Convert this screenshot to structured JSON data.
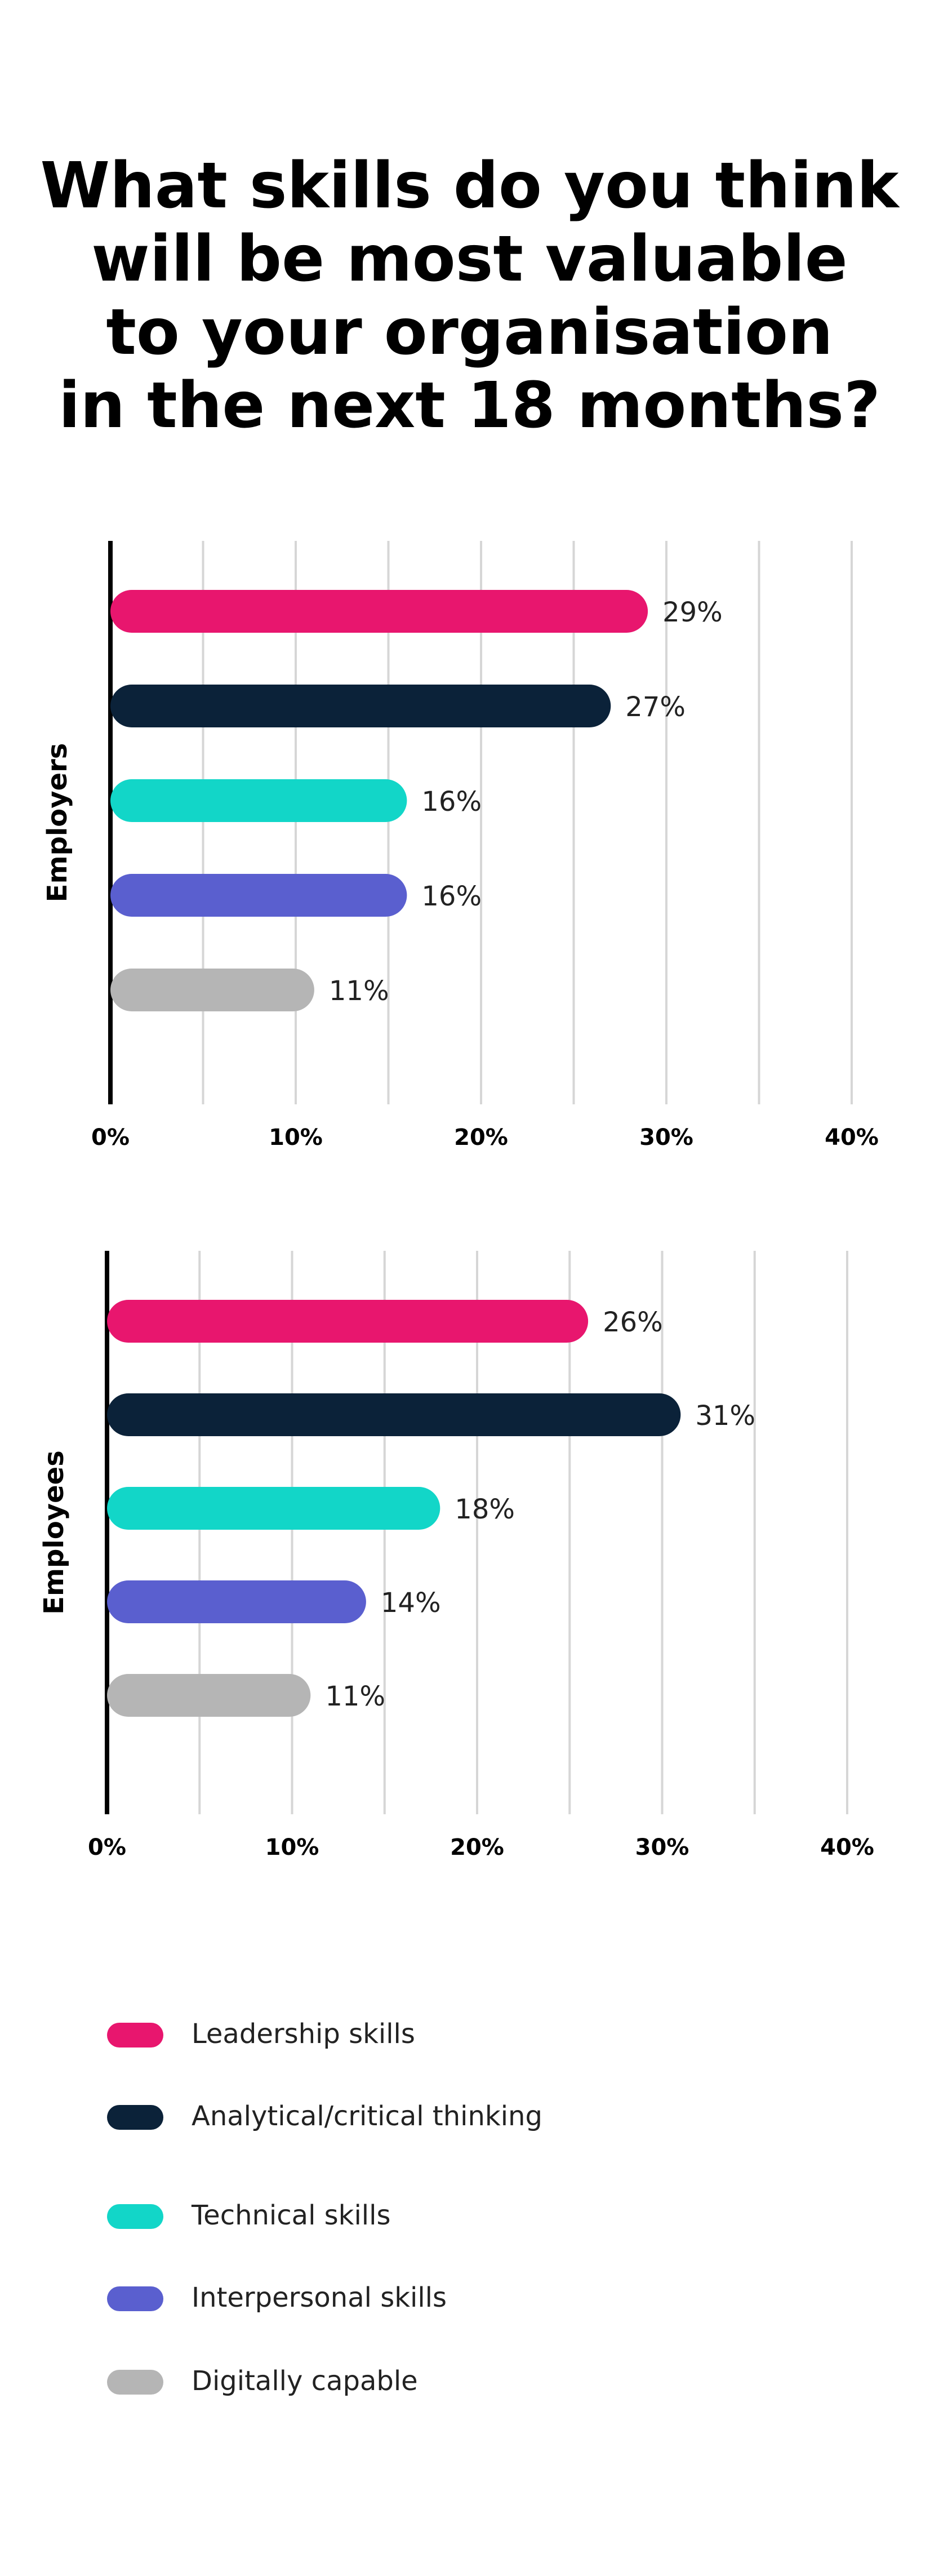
{
  "title_lines": [
    "What skills do you think",
    "will be most valuable",
    "to your organisation",
    "in the next 18 months?"
  ],
  "colors": {
    "leadership": "#E8166E",
    "analytical": "#0B2239",
    "technical": "#12D6C8",
    "interpersonal": "#5A5FCF",
    "digital": "#B5B5B5",
    "grid": "#D6D6D6",
    "axis": "#000000"
  },
  "chart_data": [
    {
      "type": "bar",
      "orientation": "horizontal",
      "ylabel": "Employers",
      "categories": [
        "Leadership skills",
        "Analytical/critical thinking",
        "Technical skills",
        "Interpersonal skills",
        "Digitally capable"
      ],
      "values": [
        29,
        27,
        16,
        16,
        11
      ],
      "value_labels": [
        "29%",
        "27%",
        "16%",
        "16%",
        "11%"
      ],
      "xlim": [
        0,
        40
      ],
      "xticks": [
        0,
        10,
        20,
        30,
        40
      ],
      "xtick_labels": [
        "0%",
        "10%",
        "20%",
        "30%",
        "40%"
      ],
      "grid_minor_step": 5,
      "grid": true
    },
    {
      "type": "bar",
      "orientation": "horizontal",
      "ylabel": "Employees",
      "categories": [
        "Leadership skills",
        "Analytical/critical thinking",
        "Technical skills",
        "Interpersonal skills",
        "Digitally capable"
      ],
      "values": [
        26,
        31,
        18,
        14,
        11
      ],
      "value_labels": [
        "26%",
        "31%",
        "18%",
        "14%",
        "11%"
      ],
      "xlim": [
        0,
        40
      ],
      "xticks": [
        0,
        10,
        20,
        30,
        40
      ],
      "xtick_labels": [
        "0%",
        "10%",
        "20%",
        "30%",
        "40%"
      ],
      "grid_minor_step": 5,
      "grid": true
    }
  ],
  "legend": {
    "placement": "bottom",
    "items": [
      {
        "label": "Leadership skills",
        "color": "#E8166E"
      },
      {
        "label": "Analytical/critical thinking",
        "color": "#0B2239"
      },
      {
        "label": "Technical skills",
        "color": "#12D6C8"
      },
      {
        "label": "Interpersonal skills",
        "color": "#5A5FCF"
      },
      {
        "label": "Digitally capable",
        "color": "#B5B5B5"
      }
    ]
  }
}
